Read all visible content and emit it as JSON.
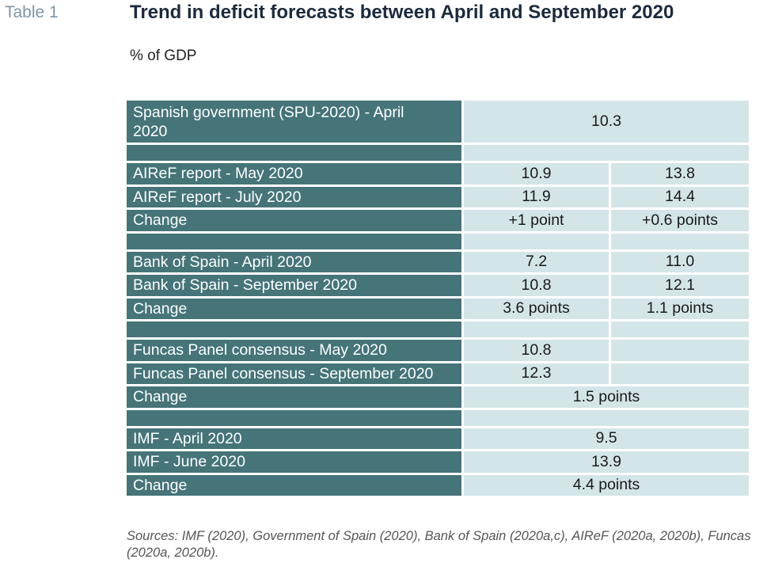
{
  "table_label": "Table 1",
  "title": "Trend in deficit forecasts between April and September 2020",
  "subtitle": "% of GDP",
  "rows": {
    "spu_april": {
      "label": "Spanish government (SPU-2020) - April 2020",
      "value": "10.3"
    },
    "airef_may": {
      "label": "AIReF report - May 2020",
      "v1": "10.9",
      "v2": "13.8"
    },
    "airef_july": {
      "label": "AIReF report - July 2020",
      "v1": "11.9",
      "v2": "14.4"
    },
    "airef_change": {
      "label": "Change",
      "v1": "+1 point",
      "v2": "+0.6 points"
    },
    "bos_april": {
      "label": "Bank of Spain - April 2020",
      "v1": "7.2",
      "v2": "11.0"
    },
    "bos_sept": {
      "label": "Bank of Spain - September 2020",
      "v1": "10.8",
      "v2": "12.1"
    },
    "bos_change": {
      "label": "Change",
      "v1": "3.6 points",
      "v2": "1.1 points"
    },
    "funcas_may": {
      "label": "Funcas Panel consensus - May 2020",
      "v1": "10.8",
      "v2": ""
    },
    "funcas_sept": {
      "label": "Funcas Panel consensus - September 2020",
      "v1": "12.3",
      "v2": ""
    },
    "funcas_change": {
      "label": "Change",
      "value": "1.5 points"
    },
    "imf_april": {
      "label": "IMF - April 2020",
      "value": "9.5"
    },
    "imf_june": {
      "label": "IMF - June 2020",
      "value": "13.9"
    },
    "imf_change": {
      "label": "Change",
      "value": "4.4 points"
    }
  },
  "sources": "Sources: IMF (2020), Government of Spain (2020), Bank of Spain (2020a,c), AIReF (2020a, 2020b), Funcas (2020a, 2020b).",
  "colors": {
    "label_bg": "#457479",
    "value_bg": "#d4e5e8",
    "title": "#1c2a3d",
    "table_label": "#7d96a7"
  }
}
